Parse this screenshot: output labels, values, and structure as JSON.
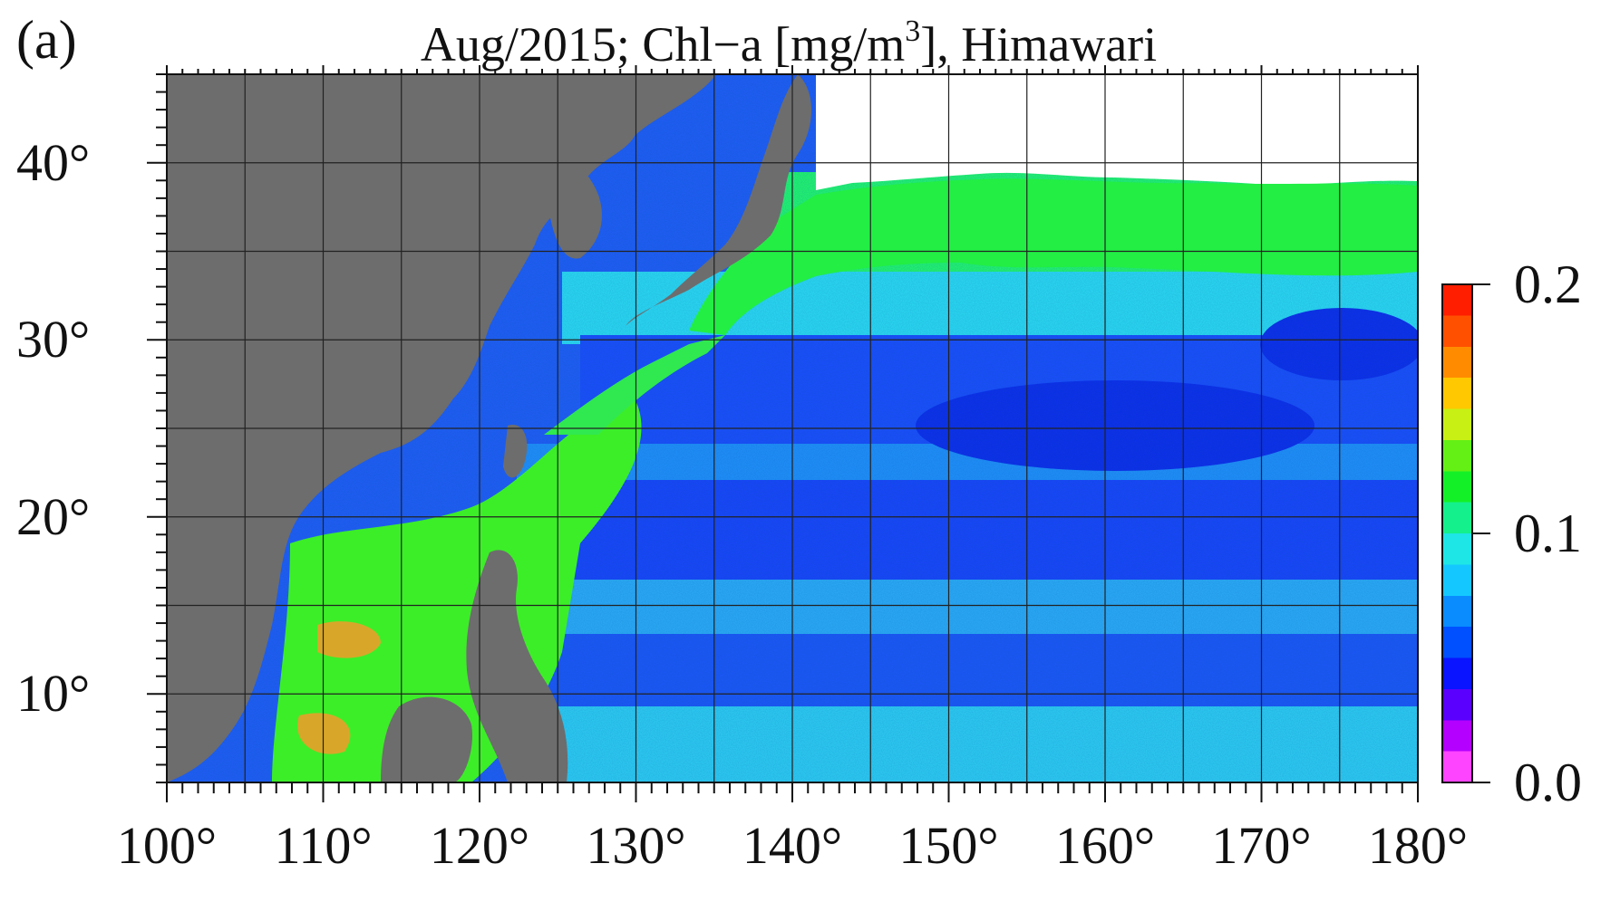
{
  "panel_label": "(a)",
  "title": {
    "prefix": "Aug/2015; Chl−a [mg/m",
    "superscript": "3",
    "suffix": "], Himawari"
  },
  "map": {
    "lon_range": [
      100,
      180
    ],
    "lat_range": [
      5,
      45
    ],
    "lon_ticks": [
      "100°",
      "110°",
      "120°",
      "130°",
      "140°",
      "150°",
      "160°",
      "170°",
      "180°"
    ],
    "lat_ticks": [
      "10°",
      "20°",
      "30°",
      "40°"
    ],
    "grid": true,
    "land_color": "#6d6d6d",
    "no_data_color": "#ffffff"
  },
  "colorbar": {
    "min": 0.0,
    "max": 0.2,
    "tick_labels": [
      "0.0",
      "0.1",
      "0.2"
    ],
    "colors": [
      "#ff44ff",
      "#b400ff",
      "#5a00ff",
      "#0a14ff",
      "#0050ff",
      "#0a8cff",
      "#14c8ff",
      "#1ee6e6",
      "#14f08c",
      "#14f028",
      "#64f014",
      "#c8f014",
      "#ffc800",
      "#ff8c00",
      "#ff5000",
      "#ff1e00"
    ]
  }
}
